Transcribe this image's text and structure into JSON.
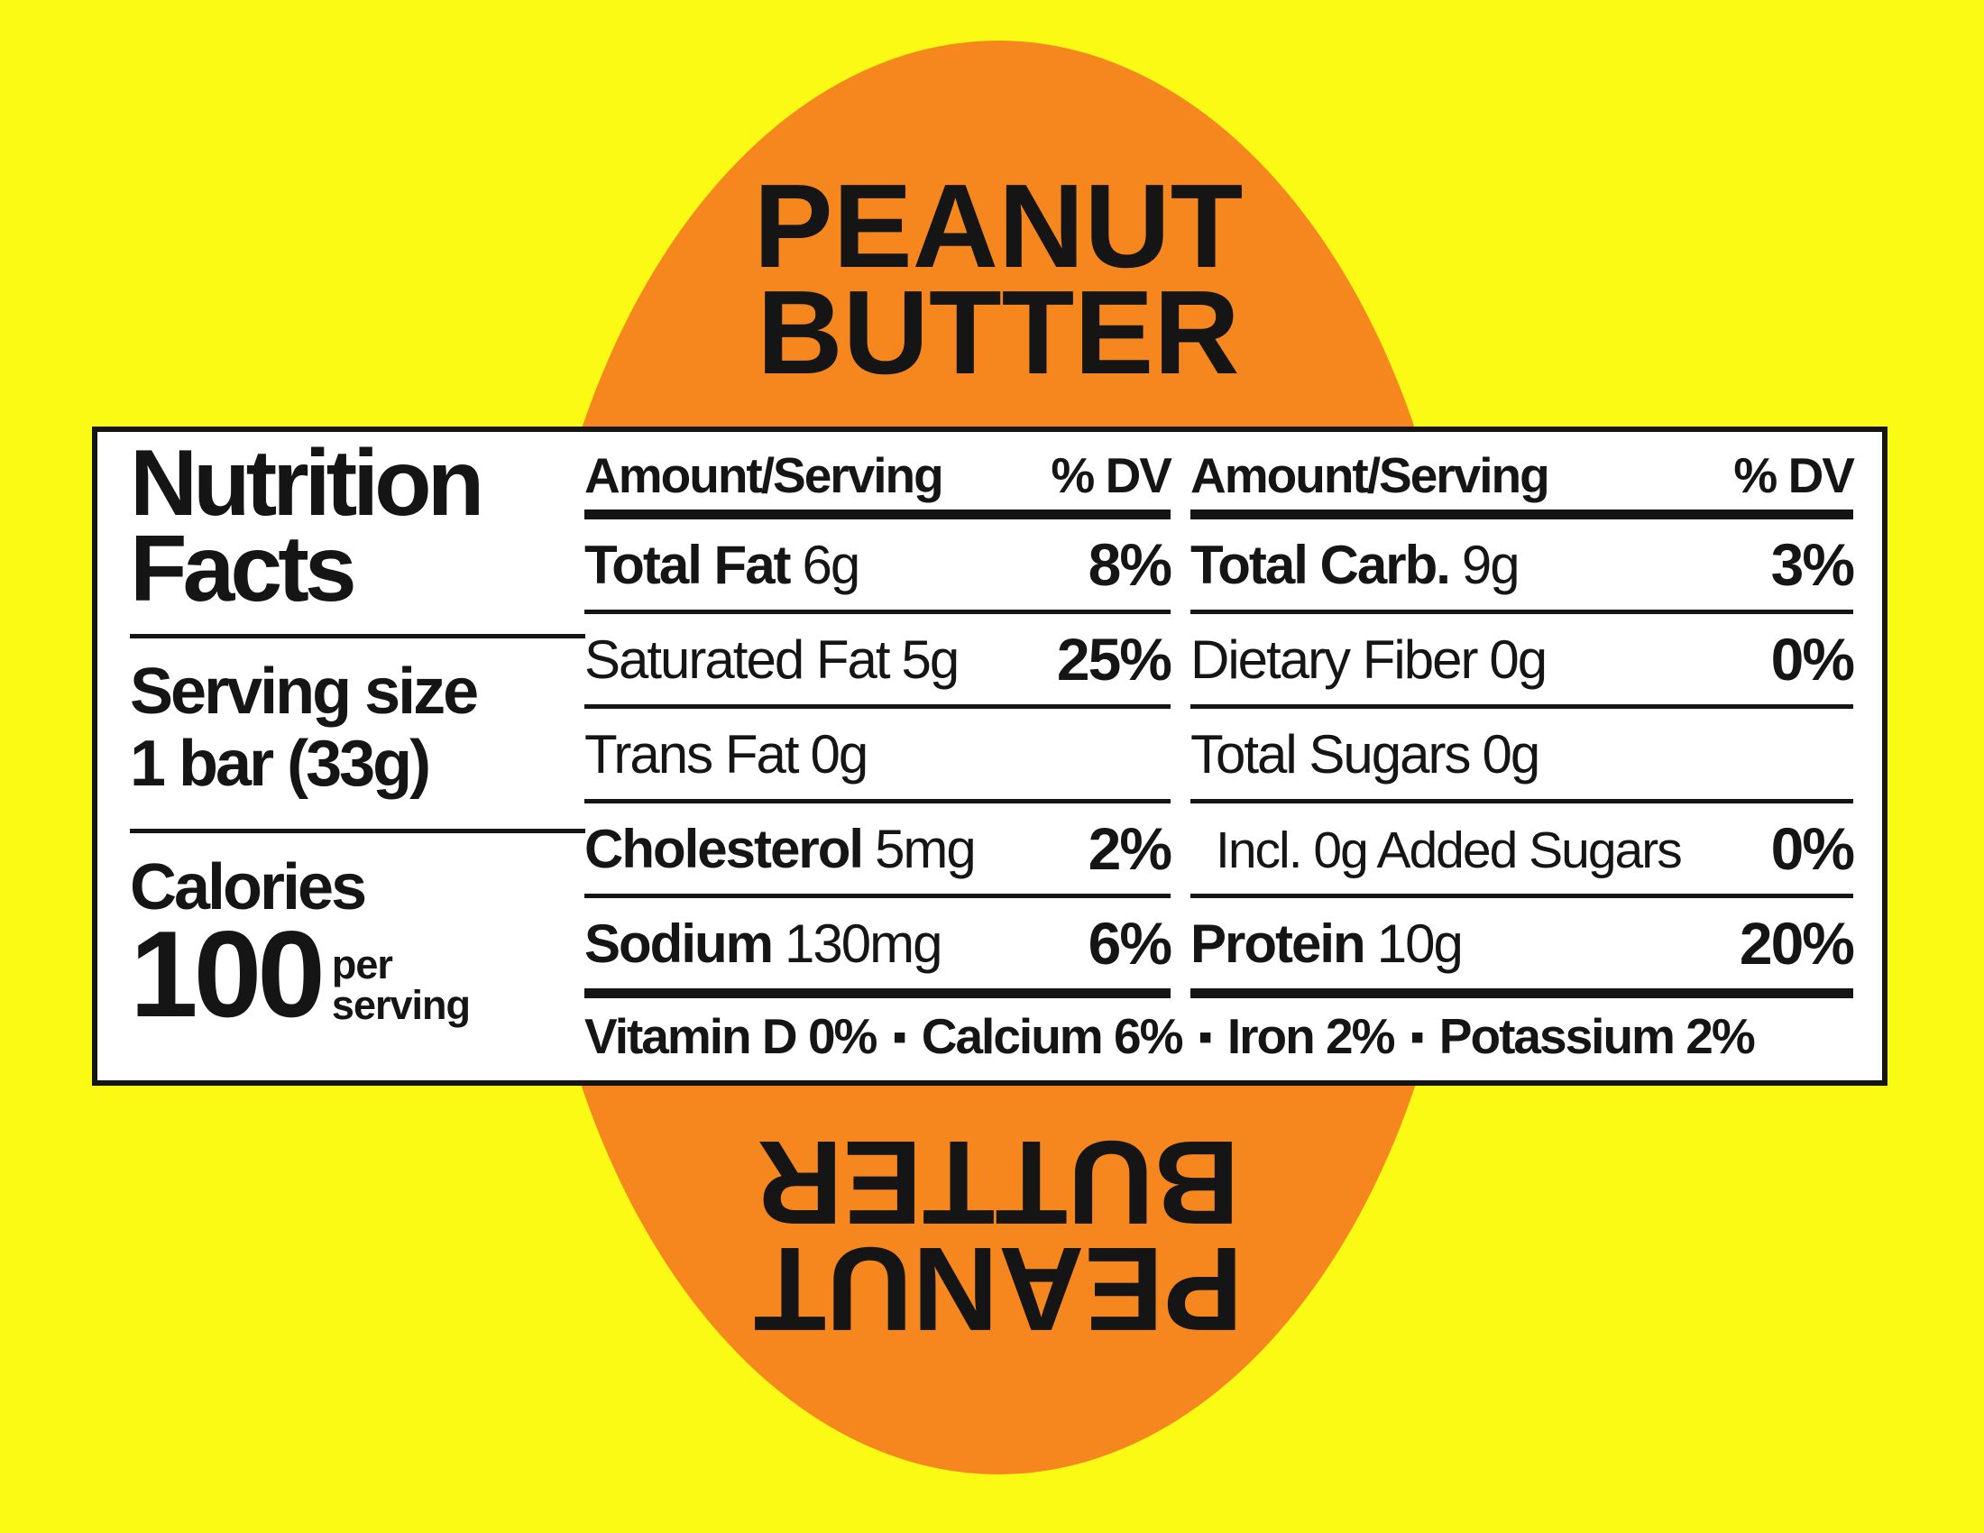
{
  "colors": {
    "background_yellow": "#FAFA14",
    "ellipse_orange": "#F6861E",
    "text_black": "#151515",
    "panel_white": "#FFFFFF"
  },
  "title_top": {
    "line1": "PEANUT",
    "line2": "BUTTER"
  },
  "title_bottom": {
    "line1": "PEANUT",
    "line2": "BUTTER"
  },
  "panel": {
    "heading": {
      "line1": "Nutrition",
      "line2": "Facts"
    },
    "serving": {
      "label": "Serving size",
      "value": "1 bar (33g)"
    },
    "calories": {
      "label": "Calories",
      "value": "100",
      "per_line1": "per",
      "per_line2": "serving"
    },
    "separator": "▪",
    "col1": {
      "header": {
        "amount": "Amount/Serving",
        "dv": "% DV"
      },
      "rows": [
        {
          "name": "Total Fat",
          "amount": "6g",
          "dv": "8%"
        },
        {
          "name": "Saturated Fat",
          "amount": "5g",
          "dv": "25%"
        },
        {
          "name": "Trans Fat",
          "amount": "0g",
          "dv": ""
        },
        {
          "name": "Cholesterol",
          "amount": "5mg",
          "dv": "2%"
        },
        {
          "name": "Sodium",
          "amount": "130mg",
          "dv": "6%"
        }
      ]
    },
    "col2": {
      "header": {
        "amount": "Amount/Serving",
        "dv": "% DV"
      },
      "rows": [
        {
          "name": "Total Carb.",
          "amount": "9g",
          "dv": "3%"
        },
        {
          "name": "Dietary Fiber",
          "amount": "0g",
          "dv": "0%"
        },
        {
          "name": "Total Sugars",
          "amount": "0g",
          "dv": ""
        },
        {
          "name": "Incl. 0g Added Sugars",
          "amount": "",
          "dv": "0%"
        },
        {
          "name": "Protein",
          "amount": "10g",
          "dv": "20%"
        }
      ]
    },
    "micronutrients": [
      {
        "name": "Vitamin D",
        "dv": "0%"
      },
      {
        "name": "Calcium",
        "dv": "6%"
      },
      {
        "name": "Iron",
        "dv": "2%"
      },
      {
        "name": "Potassium",
        "dv": "2%"
      }
    ]
  }
}
